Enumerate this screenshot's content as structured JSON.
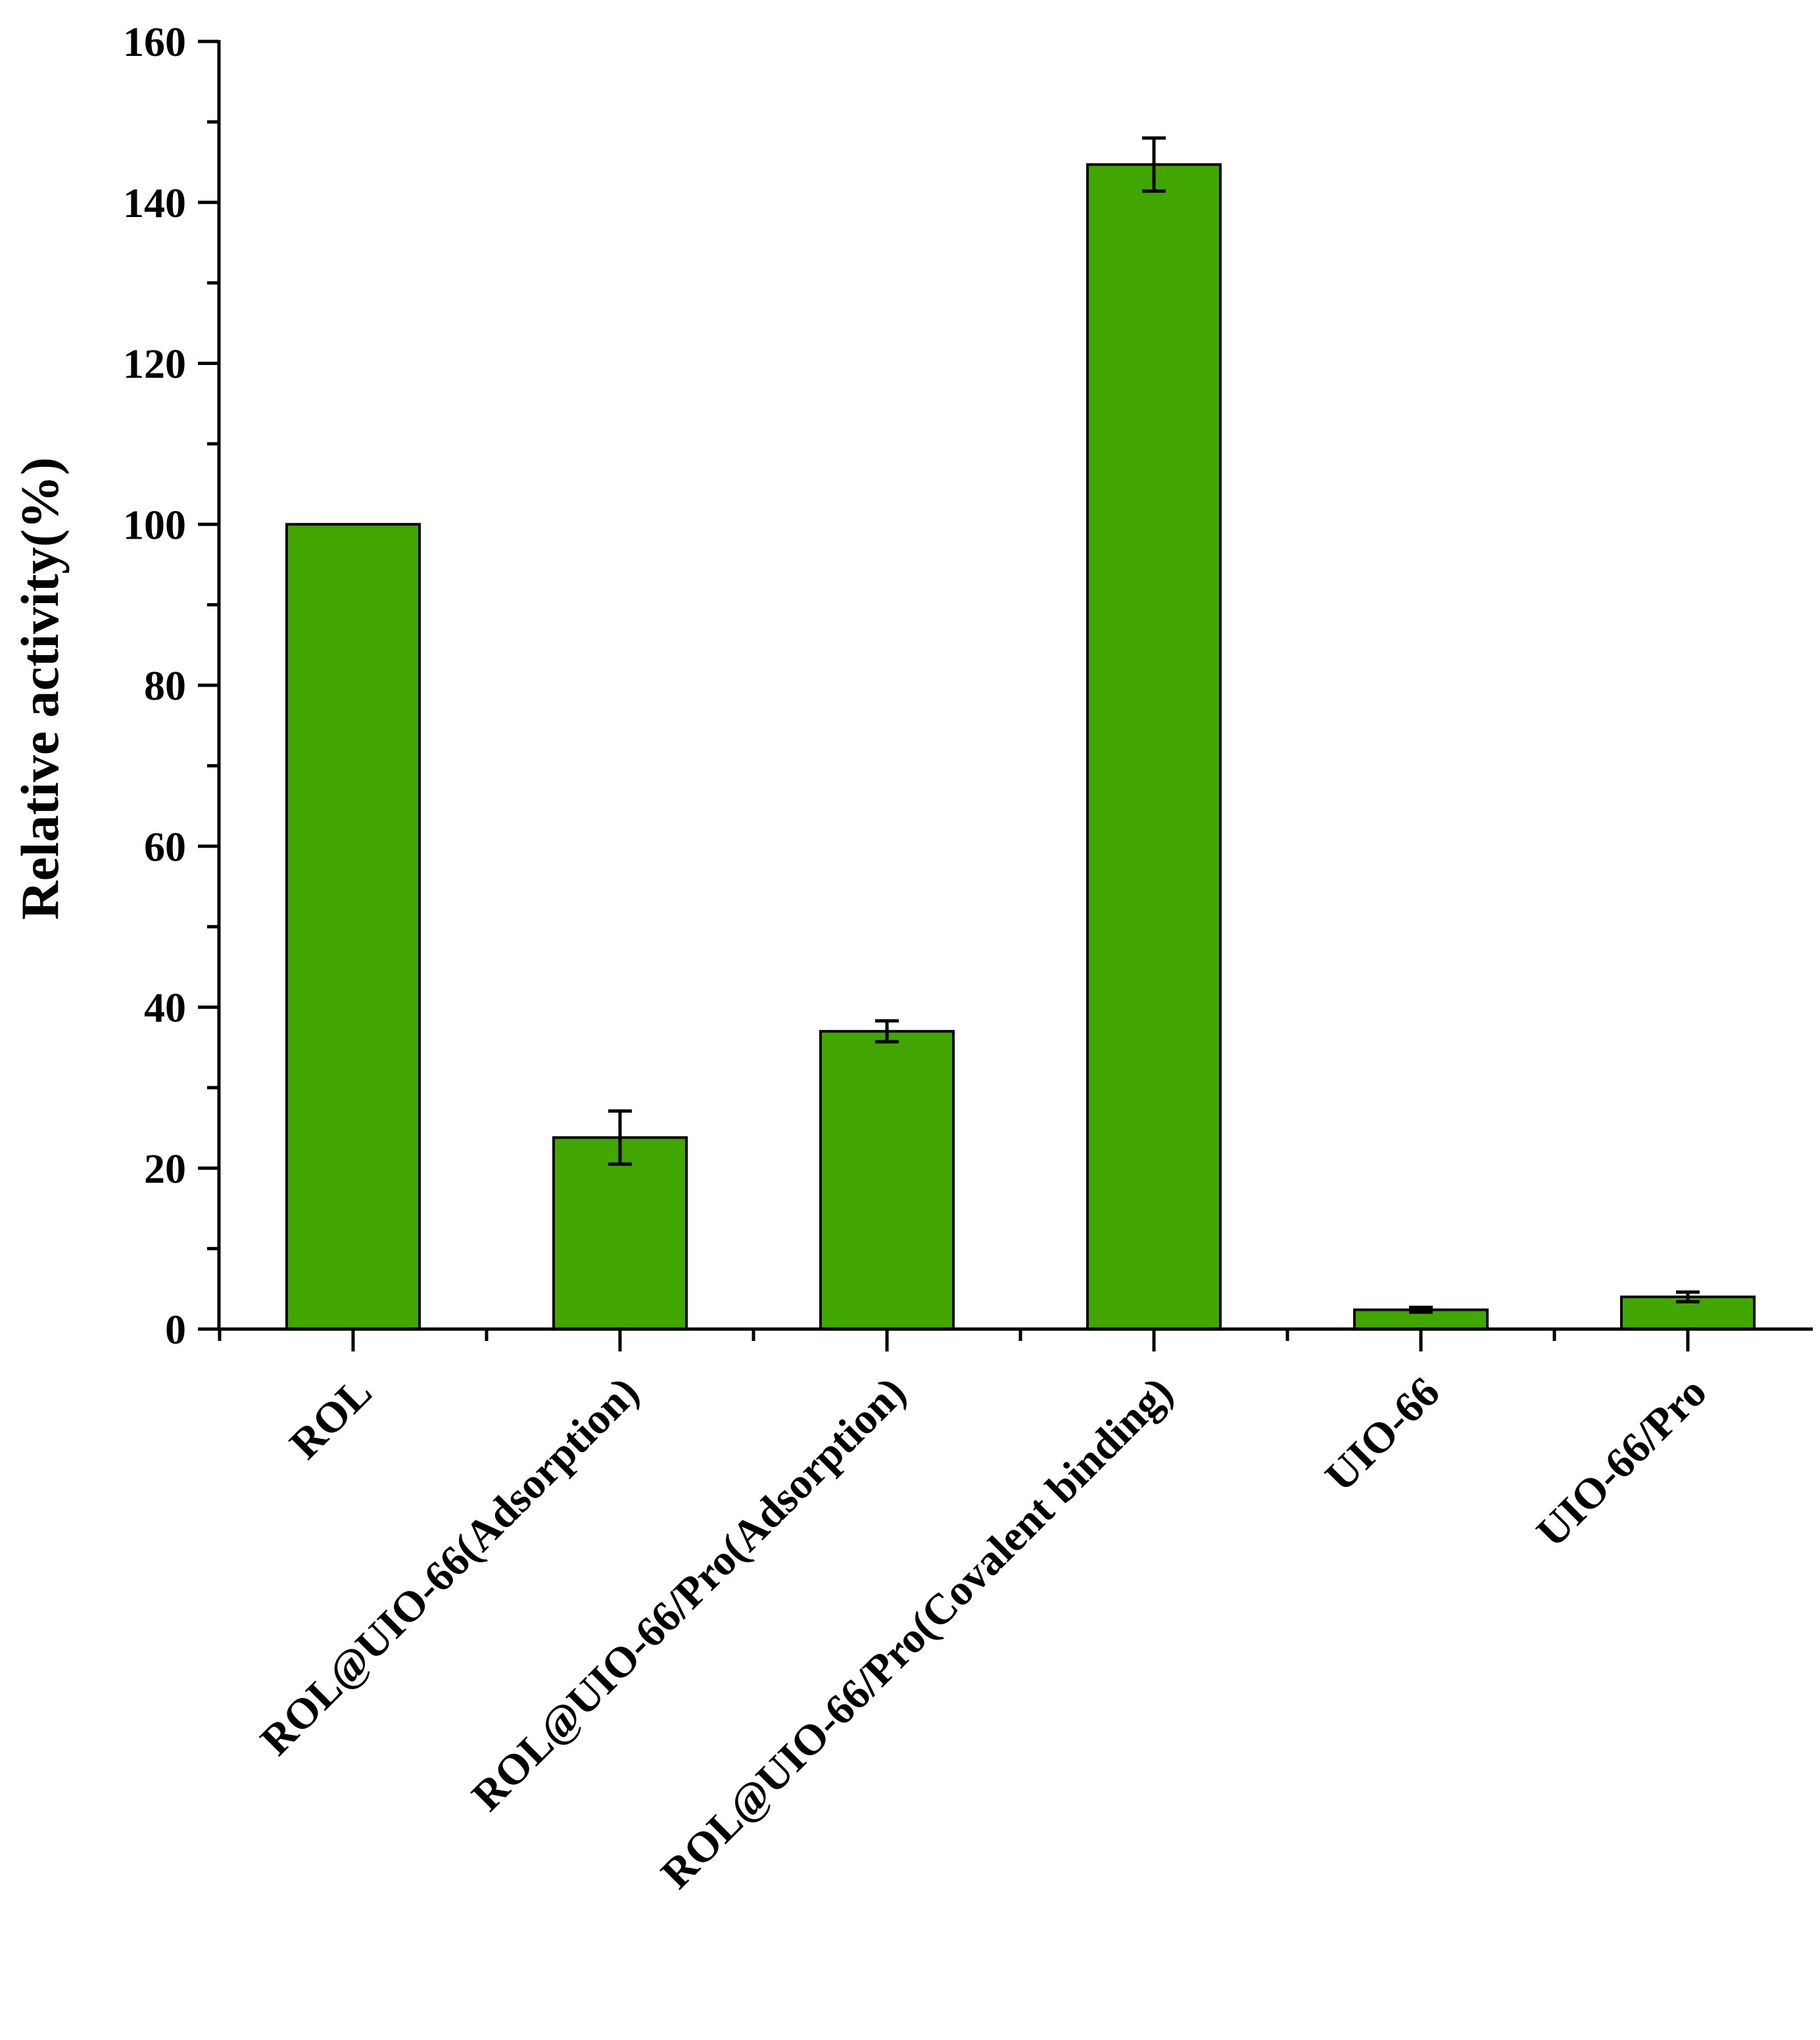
{
  "chart_data": {
    "type": "bar",
    "title": "",
    "xlabel": "",
    "ylabel": "Relative activity(%)",
    "ylim": [
      0,
      160
    ],
    "yticks": [
      0,
      20,
      40,
      60,
      80,
      100,
      120,
      140,
      160
    ],
    "categories": [
      "ROL",
      "ROL@UIO-66(Adsorption)",
      "ROL@UIO-66/Pro(Adsorption)",
      "ROL@UIO-66/Pro(Covalent binding)",
      "UIO-66",
      "UIO-66/Pro"
    ],
    "values": [
      100,
      23.8,
      37,
      144.7,
      2.4,
      4
    ],
    "errors": [
      0,
      3.3,
      1.3,
      3.3,
      0.3,
      0.6
    ],
    "grid": false,
    "legend": "none",
    "colors": {
      "bar": "#41a600",
      "outline": "#000000"
    }
  }
}
